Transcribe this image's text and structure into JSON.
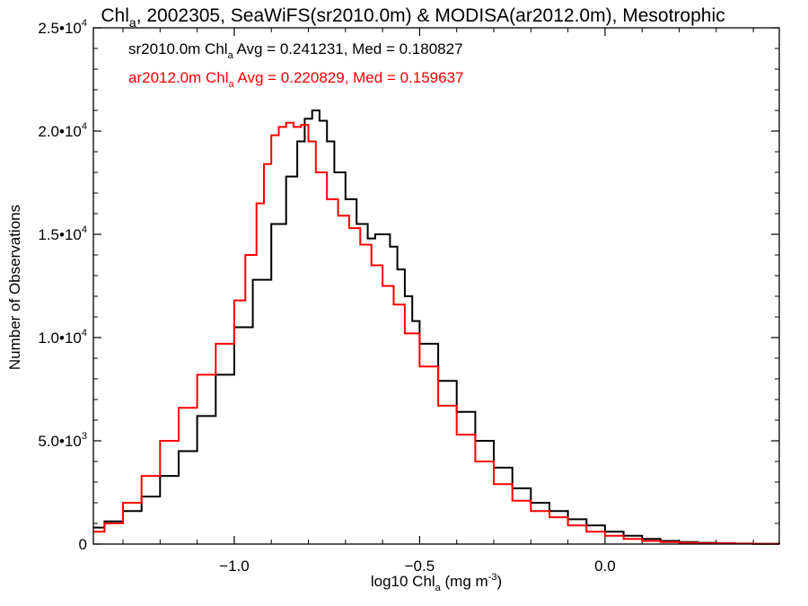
{
  "chart_data": {
    "type": "line",
    "title": {
      "pre": "Chl",
      "sub": "a",
      "post": ", 2002305, SeaWiFS(sr2010.0m) & MODISA(ar2012.0m), Mesotrophic"
    },
    "xlabel": {
      "pre": "log10 Chl",
      "sub": "a",
      "post": " (mg m",
      "sup": "-3",
      "end": ")"
    },
    "ylabel": "Number of Observations",
    "xlim": [
      -1.38,
      0.47
    ],
    "ylim": [
      0,
      25000
    ],
    "x_ticks": [
      {
        "value": -1.0,
        "label": "−1.0"
      },
      {
        "value": -0.5,
        "label": "−0.5"
      },
      {
        "value": 0.0,
        "label": "0.0"
      }
    ],
    "y_ticks": [
      {
        "value": 0,
        "mant": "0",
        "exp": ""
      },
      {
        "value": 5000,
        "mant": "5.0•10",
        "exp": "3"
      },
      {
        "value": 10000,
        "mant": "1.0•10",
        "exp": "4"
      },
      {
        "value": 15000,
        "mant": "1.5•10",
        "exp": "4"
      },
      {
        "value": 20000,
        "mant": "2.0•10",
        "exp": "4"
      },
      {
        "value": 25000,
        "mant": "2.5•10",
        "exp": "4"
      }
    ],
    "legend": [
      {
        "pre": "sr2010.0m Chl",
        "sub": "a",
        "post": " Avg = 0.241231, Med = 0.180827",
        "color": "#000000"
      },
      {
        "pre": "ar2012.0m Chl",
        "sub": "a",
        "post": " Avg = 0.220829, Med = 0.159637",
        "color": "#ff0000"
      }
    ],
    "legend_position": "top-left",
    "series": [
      {
        "color": "#000000",
        "x": [
          -1.38,
          -1.35,
          -1.3,
          -1.25,
          -1.2,
          -1.15,
          -1.1,
          -1.05,
          -1.0,
          -0.95,
          -0.9,
          -0.86,
          -0.83,
          -0.81,
          -0.79,
          -0.77,
          -0.75,
          -0.73,
          -0.7,
          -0.67,
          -0.64,
          -0.62,
          -0.6,
          -0.58,
          -0.56,
          -0.54,
          -0.52,
          -0.5,
          -0.45,
          -0.4,
          -0.35,
          -0.3,
          -0.25,
          -0.2,
          -0.15,
          -0.1,
          -0.05,
          0.0,
          0.05,
          0.1,
          0.15,
          0.2,
          0.25,
          0.3,
          0.35,
          0.4,
          0.47
        ],
        "y": [
          800,
          1100,
          1600,
          2300,
          3300,
          4500,
          6200,
          8200,
          10500,
          12800,
          15500,
          17800,
          19500,
          20600,
          21000,
          20500,
          19500,
          18000,
          16700,
          15500,
          14800,
          15000,
          15000,
          14400,
          13300,
          12000,
          10800,
          9700,
          7900,
          6400,
          5000,
          3700,
          2700,
          2000,
          1600,
          1200,
          900,
          600,
          400,
          250,
          150,
          100,
          60,
          40,
          25,
          15,
          10
        ]
      },
      {
        "color": "#ff0000",
        "x": [
          -1.38,
          -1.35,
          -1.3,
          -1.25,
          -1.2,
          -1.15,
          -1.1,
          -1.05,
          -1.0,
          -0.97,
          -0.94,
          -0.92,
          -0.9,
          -0.88,
          -0.86,
          -0.84,
          -0.82,
          -0.8,
          -0.78,
          -0.75,
          -0.72,
          -0.69,
          -0.66,
          -0.63,
          -0.6,
          -0.57,
          -0.54,
          -0.5,
          -0.45,
          -0.4,
          -0.35,
          -0.3,
          -0.25,
          -0.2,
          -0.15,
          -0.1,
          -0.05,
          0.0,
          0.05,
          0.1,
          0.15,
          0.2,
          0.25,
          0.3,
          0.35,
          0.4,
          0.47
        ],
        "y": [
          600,
          1000,
          2000,
          3300,
          5000,
          6600,
          8200,
          9700,
          11800,
          14000,
          16500,
          18400,
          19800,
          20200,
          20400,
          20200,
          20300,
          19500,
          18000,
          16700,
          15900,
          15300,
          14500,
          13500,
          12500,
          11600,
          10200,
          8600,
          6700,
          5300,
          4000,
          2900,
          2100,
          1600,
          1300,
          900,
          600,
          400,
          250,
          150,
          100,
          60,
          40,
          30,
          20,
          10,
          5
        ]
      }
    ]
  }
}
